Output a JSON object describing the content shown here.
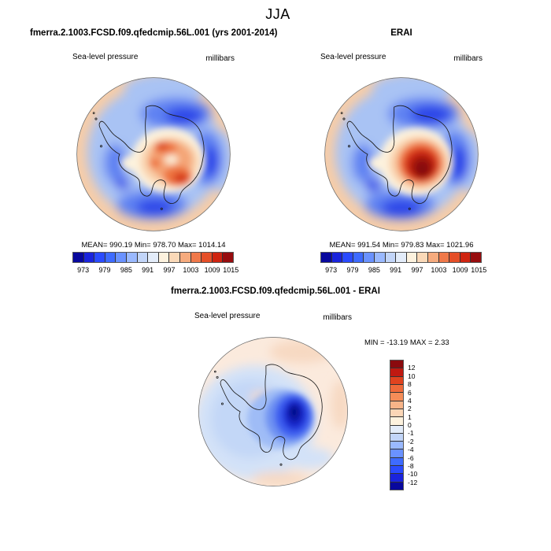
{
  "title": "JJA",
  "panels": {
    "model": {
      "title": "fmerra.2.1003.FCSD.f09.qfedcmip.56L.001 (yrs 2001-2014)",
      "field_label": "Sea-level pressure",
      "units": "millibars",
      "stats": "MEAN= 990.19  Min= 978.70  Max= 1014.14"
    },
    "erai": {
      "title": "ERAI",
      "field_label": "Sea-level pressure",
      "units": "millibars",
      "stats": "MEAN= 991.54  Min= 979.83  Max= 1021.96"
    },
    "diff": {
      "title": "fmerra.2.1003.FCSD.f09.qfedcmip.56L.001 - ERAI",
      "field_label": "Sea-level pressure",
      "units": "millibars",
      "stats": "MIN = -13.19 MAX =   2.33"
    }
  },
  "chart_data": [
    {
      "type": "heatmap",
      "subtype": "filled-contour-south-polar-map",
      "title": "fmerra.2.1003.FCSD.f09.qfedcmip.56L.001 (yrs 2001-2014)",
      "season": "JJA",
      "variable": "Sea-level pressure",
      "units": "millibars",
      "stats": {
        "mean": 990.19,
        "min": 978.7,
        "max": 1014.14
      },
      "colorbar": {
        "orientation": "horizontal",
        "tick_labels": [
          "973",
          "979",
          "985",
          "991",
          "997",
          "1003",
          "1009",
          "1015"
        ],
        "colors": [
          "#08089d",
          "#1a24dd",
          "#2a4bff",
          "#3e6bff",
          "#6a92ff",
          "#9ab9ff",
          "#c2d5f8",
          "#e3ecf9",
          "#fdf2de",
          "#fad9b8",
          "#f6ab7e",
          "#f0794a",
          "#e54f28",
          "#cf2410",
          "#970c0e"
        ]
      }
    },
    {
      "type": "heatmap",
      "subtype": "filled-contour-south-polar-map",
      "title": "ERAI",
      "season": "JJA",
      "variable": "Sea-level pressure",
      "units": "millibars",
      "stats": {
        "mean": 991.54,
        "min": 979.83,
        "max": 1021.96
      },
      "colorbar": {
        "orientation": "horizontal",
        "tick_labels": [
          "973",
          "979",
          "985",
          "991",
          "997",
          "1003",
          "1009",
          "1015"
        ],
        "colors": [
          "#08089d",
          "#1a24dd",
          "#2a4bff",
          "#3e6bff",
          "#6a92ff",
          "#9ab9ff",
          "#c2d5f8",
          "#e3ecf9",
          "#fdf2de",
          "#fad9b8",
          "#f6ab7e",
          "#f0794a",
          "#e54f28",
          "#cf2410",
          "#970c0e"
        ]
      }
    },
    {
      "type": "heatmap",
      "subtype": "filled-contour-south-polar-map",
      "title": "fmerra.2.1003.FCSD.f09.qfedcmip.56L.001 - ERAI",
      "season": "JJA",
      "variable": "Sea-level pressure",
      "units": "millibars",
      "stats": {
        "min": -13.19,
        "max": 2.33
      },
      "colorbar": {
        "orientation": "vertical",
        "tick_labels": [
          "12",
          "10",
          "8",
          "6",
          "4",
          "2",
          "1",
          "0",
          "-1",
          "-2",
          "-4",
          "-6",
          "-8",
          "-10",
          "-12"
        ],
        "colors": [
          "#8b0a0e",
          "#c01911",
          "#e0431f",
          "#ef6a3a",
          "#f58d58",
          "#f8b488",
          "#fbd6b6",
          "#fdf2de",
          "#e3ecf9",
          "#c2d5f8",
          "#9ab9ff",
          "#6a92ff",
          "#3e6bff",
          "#2a4bff",
          "#1a24dd",
          "#08089d"
        ]
      }
    }
  ]
}
